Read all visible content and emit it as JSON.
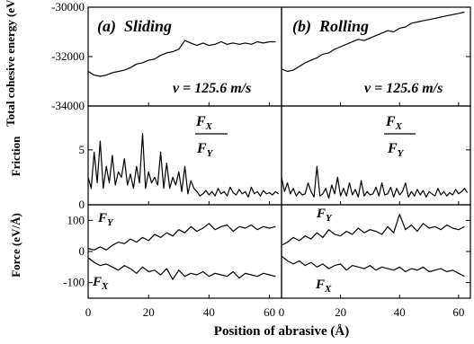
{
  "chart_data": [
    {
      "type": "line",
      "row": "energy",
      "ylabel": "Total cohesive energy (eV)",
      "ylim": [
        -34000,
        -30000
      ],
      "yticks": [
        -30000,
        -32000,
        -34000
      ],
      "xlim": [
        0,
        64
      ],
      "annotation": "v = 125.6 m/s",
      "panels": [
        {
          "title": "(a)  Sliding",
          "series": [
            {
              "x": [
                0,
                2,
                4,
                6,
                8,
                10,
                12,
                14,
                16,
                18,
                20,
                22,
                24,
                26,
                28,
                30,
                32,
                34,
                36,
                38,
                40,
                42,
                44,
                46,
                48,
                50,
                52,
                54,
                56,
                58,
                60,
                62
              ],
              "values": [
                -32600,
                -32750,
                -32800,
                -32750,
                -32650,
                -32600,
                -32550,
                -32450,
                -32300,
                -32250,
                -32150,
                -32100,
                -31950,
                -31850,
                -31800,
                -31700,
                -31350,
                -31450,
                -31550,
                -31450,
                -31550,
                -31500,
                -31400,
                -31500,
                -31450,
                -31500,
                -31450,
                -31500,
                -31400,
                -31450,
                -31400,
                -31400
              ]
            }
          ]
        },
        {
          "title": "(b)  Rolling",
          "series": [
            {
              "x": [
                0,
                2,
                4,
                6,
                8,
                10,
                12,
                14,
                16,
                18,
                20,
                22,
                24,
                26,
                28,
                30,
                32,
                34,
                36,
                38,
                40,
                42,
                44,
                46,
                48,
                50,
                52,
                54,
                56,
                58,
                60,
                62
              ],
              "values": [
                -32500,
                -32600,
                -32550,
                -32400,
                -32250,
                -32150,
                -32050,
                -31900,
                -31850,
                -31700,
                -31600,
                -31500,
                -31400,
                -31300,
                -31350,
                -31250,
                -31150,
                -31050,
                -30950,
                -31000,
                -30850,
                -30800,
                -30650,
                -30600,
                -30550,
                -30500,
                -30450,
                -30400,
                -30350,
                -30300,
                -30250,
                -30200
              ]
            }
          ]
        }
      ]
    },
    {
      "type": "line",
      "row": "friction",
      "ylabel": "Friction",
      "ylim": [
        0,
        9
      ],
      "yticks": [
        0,
        5
      ],
      "xlim": [
        0,
        64
      ],
      "annotation": {
        "num": "F",
        "num_sub": "X",
        "den": "F",
        "den_sub": "Y"
      },
      "panels": [
        {
          "series": [
            {
              "x": [
                0,
                1,
                2,
                3,
                4,
                5,
                6,
                7,
                8,
                9,
                10,
                11,
                12,
                13,
                14,
                15,
                16,
                17,
                18,
                19,
                20,
                21,
                22,
                23,
                24,
                25,
                26,
                27,
                28,
                29,
                30,
                31,
                32,
                33,
                34,
                35,
                36,
                37,
                38,
                39,
                40,
                41,
                42,
                43,
                44,
                45,
                46,
                47,
                48,
                49,
                50,
                51,
                52,
                53,
                54,
                55,
                56,
                57,
                58,
                59,
                60,
                61,
                62,
                63
              ],
              "values": [
                2.5,
                1.5,
                4.8,
                2.0,
                5.8,
                1.5,
                3.5,
                2.0,
                4.5,
                1.8,
                3.0,
                2.5,
                4.2,
                1.8,
                2.8,
                1.5,
                3.5,
                2.0,
                6.5,
                1.5,
                3.0,
                2.0,
                2.5,
                1.8,
                4.8,
                1.5,
                3.8,
                1.5,
                2.5,
                1.8,
                3.0,
                1.2,
                3.5,
                1.0,
                2.2,
                1.5,
                1.2,
                0.8,
                1.0,
                1.3,
                0.9,
                1.2,
                0.8,
                1.5,
                1.0,
                1.2,
                0.8,
                1.6,
                1.1,
                0.9,
                1.4,
                1.0,
                1.2,
                0.7,
                1.6,
                1.0,
                1.2,
                0.8,
                1.3,
                1.0,
                1.1,
                0.9,
                1.2,
                1.0
              ]
            }
          ]
        },
        {
          "series": [
            {
              "x": [
                0,
                1,
                2,
                3,
                4,
                5,
                6,
                7,
                8,
                9,
                10,
                11,
                12,
                13,
                14,
                15,
                16,
                17,
                18,
                19,
                20,
                21,
                22,
                23,
                24,
                25,
                26,
                27,
                28,
                29,
                30,
                31,
                32,
                33,
                34,
                35,
                36,
                37,
                38,
                39,
                40,
                41,
                42,
                43,
                44,
                45,
                46,
                47,
                48,
                49,
                50,
                51,
                52,
                53,
                54,
                55,
                56,
                57,
                58,
                59,
                60,
                61,
                62,
                63
              ],
              "values": [
                2.5,
                1.2,
                2.0,
                1.0,
                1.5,
                0.8,
                1.2,
                0.9,
                1.0,
                2.0,
                1.2,
                0.7,
                3.5,
                0.8,
                1.0,
                1.5,
                0.6,
                1.8,
                1.0,
                2.5,
                0.8,
                1.5,
                0.8,
                2.0,
                0.9,
                1.4,
                0.7,
                2.2,
                0.8,
                1.2,
                0.9,
                1.0,
                1.6,
                0.8,
                2.0,
                0.9,
                1.0,
                1.6,
                0.7,
                1.5,
                0.9,
                1.2,
                2.0,
                0.7,
                1.2,
                0.8,
                1.4,
                0.9,
                1.3,
                0.7,
                1.2,
                1.0,
                0.8,
                1.5,
                0.9,
                1.2,
                0.8,
                1.1,
                0.9,
                1.4,
                1.0,
                1.2,
                1.5,
                1.1
              ]
            }
          ]
        }
      ]
    },
    {
      "type": "line",
      "row": "force",
      "ylabel": "Force (eV/Å)",
      "ylim": [
        -150,
        150
      ],
      "yticks": [
        100,
        0,
        -100
      ],
      "xlim": [
        0,
        64
      ],
      "xlabel": "Position of abrasive (Å)",
      "xticks": [
        0,
        20,
        40,
        60
      ],
      "panels": [
        {
          "labels": {
            "fy": "F",
            "fy_sub": "Y",
            "fx": "F",
            "fx_sub": "X"
          },
          "series": [
            {
              "name": "F_Y",
              "x": [
                0,
                2,
                4,
                6,
                8,
                10,
                12,
                14,
                16,
                18,
                20,
                22,
                24,
                26,
                28,
                30,
                32,
                34,
                36,
                38,
                40,
                42,
                44,
                46,
                48,
                50,
                52,
                54,
                56,
                58,
                60,
                62
              ],
              "values": [
                10,
                5,
                15,
                5,
                20,
                30,
                25,
                40,
                30,
                45,
                35,
                55,
                45,
                60,
                50,
                70,
                60,
                80,
                65,
                75,
                90,
                70,
                80,
                85,
                65,
                80,
                75,
                85,
                70,
                80,
                75,
                80
              ]
            },
            {
              "name": "F_X",
              "x": [
                0,
                2,
                4,
                6,
                8,
                10,
                12,
                14,
                16,
                18,
                20,
                22,
                24,
                26,
                28,
                30,
                32,
                34,
                36,
                38,
                40,
                42,
                44,
                46,
                48,
                50,
                52,
                54,
                56,
                58,
                60,
                62
              ],
              "values": [
                -20,
                -35,
                -45,
                -40,
                -50,
                -60,
                -45,
                -55,
                -70,
                -50,
                -65,
                -60,
                -75,
                -55,
                -90,
                -60,
                -80,
                -70,
                -75,
                -65,
                -80,
                -70,
                -75,
                -80,
                -65,
                -85,
                -70,
                -75,
                -80,
                -70,
                -75,
                -80
              ]
            }
          ]
        },
        {
          "labels": {
            "fy": "F",
            "fy_sub": "Y",
            "fx": "F",
            "fx_sub": "X"
          },
          "series": [
            {
              "name": "F_Y",
              "x": [
                0,
                2,
                4,
                6,
                8,
                10,
                12,
                14,
                16,
                18,
                20,
                22,
                24,
                26,
                28,
                30,
                32,
                34,
                36,
                38,
                40,
                42,
                44,
                46,
                48,
                50,
                52,
                54,
                56,
                58,
                60,
                62
              ],
              "values": [
                20,
                30,
                45,
                35,
                50,
                40,
                60,
                45,
                70,
                55,
                50,
                65,
                55,
                75,
                60,
                70,
                65,
                55,
                80,
                60,
                120,
                70,
                85,
                65,
                90,
                75,
                80,
                70,
                85,
                75,
                70,
                80
              ]
            },
            {
              "name": "F_X",
              "x": [
                0,
                2,
                4,
                6,
                8,
                10,
                12,
                14,
                16,
                18,
                20,
                22,
                24,
                26,
                28,
                30,
                32,
                34,
                36,
                38,
                40,
                42,
                44,
                46,
                48,
                50,
                52,
                54,
                56,
                58,
                60,
                62
              ],
              "values": [
                -15,
                -30,
                -40,
                -30,
                -45,
                -35,
                -50,
                -40,
                -55,
                -45,
                -40,
                -60,
                -45,
                -50,
                -55,
                -45,
                -60,
                -50,
                -55,
                -60,
                -50,
                -65,
                -55,
                -60,
                -50,
                -65,
                -60,
                -55,
                -65,
                -60,
                -70,
                -80
              ]
            }
          ]
        }
      ]
    }
  ]
}
